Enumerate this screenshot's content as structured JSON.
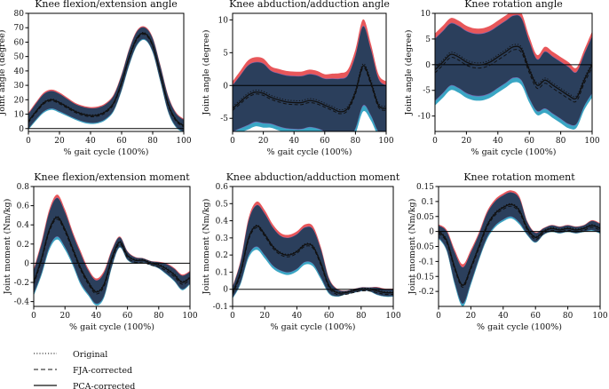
{
  "legend": {
    "original": "Original",
    "fja": "FJA-corrected",
    "pca": "PCA-corrected"
  },
  "colors": {
    "band_original": "#e8575a",
    "band_fja": "#72b043",
    "band_pca": "#3aa6c4",
    "band_overlap": "#2b3f5c",
    "band_edge": "#7b63b0",
    "line": "#111111"
  },
  "chart_data": [
    {
      "type": "line",
      "id": "knee-fe-angle",
      "title": "Knee flexion/extension angle",
      "xlabel": "% gait cycle (100%)",
      "ylabel": "Joint angle (degree)",
      "xlim": [
        0,
        100
      ],
      "ylim": [
        -2,
        80
      ],
      "xticks": [
        0,
        20,
        40,
        60,
        80,
        100
      ],
      "yticks": [
        0,
        10,
        20,
        30,
        40,
        50,
        60,
        70,
        80
      ],
      "zero_line": true,
      "x": [
        0,
        5,
        10,
        15,
        20,
        25,
        30,
        35,
        40,
        45,
        50,
        55,
        60,
        65,
        70,
        75,
        80,
        85,
        90,
        95,
        100
      ],
      "mean": [
        5,
        12,
        18,
        20,
        18,
        15,
        12,
        10,
        9,
        9.5,
        12,
        18,
        32,
        50,
        63,
        66,
        58,
        38,
        17,
        6,
        2
      ],
      "spread": [
        5,
        5.5,
        6,
        6,
        6,
        5.5,
        5,
        5,
        5,
        5,
        5,
        5,
        5,
        5,
        4.5,
        4,
        4.5,
        5,
        5,
        4.5,
        4
      ],
      "series": [
        {
          "name": "Original",
          "offset": 0.5
        },
        {
          "name": "FJA-corrected",
          "offset": -0.8
        },
        {
          "name": "PCA-corrected",
          "offset": 0
        }
      ]
    },
    {
      "type": "line",
      "id": "knee-aa-angle",
      "title": "Knee abduction/adduction angle",
      "xlabel": "% gait cycle (100%)",
      "ylabel": "Joint angle (degree)",
      "xlim": [
        0,
        100
      ],
      "ylim": [
        -7,
        11
      ],
      "xticks": [
        0,
        20,
        40,
        60,
        80,
        100
      ],
      "yticks": [
        -5,
        0,
        5,
        10
      ],
      "zero_line": true,
      "x": [
        0,
        5,
        10,
        15,
        20,
        25,
        30,
        35,
        40,
        45,
        50,
        55,
        60,
        65,
        70,
        75,
        80,
        85,
        90,
        95,
        100
      ],
      "mean": [
        -3.5,
        -2.5,
        -1.5,
        -1,
        -1.2,
        -1.8,
        -2.2,
        -2.5,
        -2.6,
        -2.6,
        -2.3,
        -2.5,
        -3,
        -3.5,
        -4,
        -3.5,
        -1,
        3,
        0.5,
        -3,
        -3.5
      ],
      "spread": [
        3.5,
        4,
        4.5,
        4.5,
        4.5,
        4,
        4,
        4,
        4,
        4,
        4,
        4,
        4,
        4.5,
        5,
        5,
        5.5,
        6,
        5,
        4,
        3.5
      ],
      "series": [
        {
          "name": "Original",
          "offset": 0.3
        },
        {
          "name": "FJA-corrected",
          "offset": -0.3
        },
        {
          "name": "PCA-corrected",
          "offset": 0
        }
      ]
    },
    {
      "type": "line",
      "id": "knee-rot-angle",
      "title": "Knee rotation angle",
      "xlabel": "% gait cycle (100%)",
      "ylabel": "Joint angle (degree)",
      "xlim": [
        0,
        100
      ],
      "ylim": [
        -13,
        10
      ],
      "xticks": [
        0,
        20,
        40,
        60,
        80,
        100
      ],
      "yticks": [
        -10,
        -5,
        0,
        5,
        10
      ],
      "zero_line": true,
      "x": [
        0,
        5,
        10,
        15,
        20,
        25,
        30,
        35,
        40,
        45,
        50,
        55,
        60,
        65,
        70,
        75,
        80,
        85,
        90,
        95,
        100
      ],
      "mean": [
        -1,
        0.5,
        2,
        1.5,
        0.5,
        0,
        0,
        0.5,
        1.5,
        2.5,
        3.5,
        3,
        -1,
        -4,
        -3,
        -4,
        -5,
        -6,
        -6.5,
        -3,
        0
      ],
      "spread": [
        6,
        6,
        6,
        6,
        6,
        6,
        6,
        6,
        6,
        6,
        6,
        6,
        5.5,
        5,
        5.5,
        5.5,
        5.5,
        5.5,
        5,
        5,
        5.5
      ],
      "series": [
        {
          "name": "Original",
          "offset": 0.4
        },
        {
          "name": "FJA-corrected",
          "offset": -0.6
        },
        {
          "name": "PCA-corrected",
          "offset": 0
        }
      ]
    },
    {
      "type": "line",
      "id": "knee-fe-moment",
      "title": "Knee flexion/extension moment",
      "xlabel": "% gait cycle (100%)",
      "ylabel": "Joint moment (Nm/kg)",
      "xlim": [
        0,
        100
      ],
      "ylim": [
        -0.45,
        0.8
      ],
      "xticks": [
        0,
        20,
        40,
        60,
        80,
        100
      ],
      "yticks": [
        -0.4,
        -0.2,
        0,
        0.2,
        0.4,
        0.6,
        0.8
      ],
      "zero_line": true,
      "x": [
        0,
        5,
        10,
        15,
        20,
        25,
        30,
        35,
        40,
        45,
        50,
        55,
        60,
        65,
        70,
        75,
        80,
        85,
        90,
        95,
        100
      ],
      "mean": [
        -0.2,
        0.05,
        0.35,
        0.48,
        0.35,
        0.15,
        -0.05,
        -0.2,
        -0.3,
        -0.22,
        0.05,
        0.22,
        0.08,
        0.03,
        0.03,
        0,
        -0.02,
        -0.06,
        -0.12,
        -0.2,
        -0.15
      ],
      "spread": [
        0.12,
        0.15,
        0.18,
        0.2,
        0.18,
        0.15,
        0.15,
        0.12,
        0.12,
        0.12,
        0.08,
        0.05,
        0.04,
        0.03,
        0.02,
        0.02,
        0.03,
        0.05,
        0.06,
        0.07,
        0.06
      ],
      "series": [
        {
          "name": "Original",
          "offset": 0.01
        },
        {
          "name": "FJA-corrected",
          "offset": -0.02
        },
        {
          "name": "PCA-corrected",
          "offset": 0
        }
      ]
    },
    {
      "type": "line",
      "id": "knee-aa-moment",
      "title": "Knee abduction/adduction moment",
      "xlabel": "% gait cycle (100%)",
      "ylabel": "Joint moment (Nm/kg)",
      "xlim": [
        0,
        100
      ],
      "ylim": [
        -0.1,
        0.6
      ],
      "xticks": [
        0,
        20,
        40,
        60,
        80,
        100
      ],
      "yticks": [
        -0.1,
        0,
        0.1,
        0.2,
        0.3,
        0.4,
        0.5,
        0.6
      ],
      "zero_line": true,
      "x": [
        0,
        5,
        10,
        15,
        20,
        25,
        30,
        35,
        40,
        45,
        50,
        55,
        60,
        65,
        70,
        75,
        80,
        85,
        90,
        95,
        100
      ],
      "mean": [
        -0.02,
        0.1,
        0.3,
        0.37,
        0.32,
        0.25,
        0.21,
        0.2,
        0.22,
        0.26,
        0.25,
        0.15,
        0.02,
        -0.02,
        -0.02,
        -0.01,
        0,
        0,
        -0.01,
        -0.02,
        -0.02
      ],
      "spread": [
        0.03,
        0.06,
        0.1,
        0.12,
        0.12,
        0.11,
        0.1,
        0.1,
        0.1,
        0.1,
        0.1,
        0.08,
        0.04,
        0.02,
        0.01,
        0.01,
        0.01,
        0.01,
        0.02,
        0.02,
        0.02
      ],
      "series": [
        {
          "name": "Original",
          "offset": 0.005
        },
        {
          "name": "FJA-corrected",
          "offset": -0.01
        },
        {
          "name": "PCA-corrected",
          "offset": 0
        }
      ]
    },
    {
      "type": "line",
      "id": "knee-rot-moment",
      "title": "Knee rotation moment",
      "xlabel": "% gait cycle (100%)",
      "ylabel": "Joint moment (Nm/kg)",
      "xlim": [
        0,
        100
      ],
      "ylim": [
        -0.25,
        0.15
      ],
      "xticks": [
        0,
        20,
        40,
        60,
        80,
        100
      ],
      "yticks": [
        -0.2,
        -0.15,
        -0.1,
        -0.05,
        0,
        0.05,
        0.1,
        0.15
      ],
      "zero_line": true,
      "x": [
        0,
        5,
        10,
        15,
        20,
        25,
        30,
        35,
        40,
        45,
        50,
        55,
        60,
        65,
        70,
        75,
        80,
        85,
        90,
        95,
        100
      ],
      "mean": [
        0,
        -0.03,
        -0.12,
        -0.18,
        -0.12,
        -0.05,
        0.02,
        0.06,
        0.08,
        0.09,
        0.07,
        0.01,
        -0.02,
        0,
        0.01,
        0.005,
        0.01,
        0.005,
        0.01,
        0.02,
        0.01
      ],
      "spread": [
        0.02,
        0.03,
        0.05,
        0.06,
        0.05,
        0.04,
        0.04,
        0.04,
        0.04,
        0.04,
        0.04,
        0.02,
        0.015,
        0.01,
        0.01,
        0.01,
        0.01,
        0.01,
        0.01,
        0.015,
        0.015
      ],
      "series": [
        {
          "name": "Original",
          "offset": 0.003
        },
        {
          "name": "FJA-corrected",
          "offset": -0.006
        },
        {
          "name": "PCA-corrected",
          "offset": 0
        }
      ]
    }
  ]
}
